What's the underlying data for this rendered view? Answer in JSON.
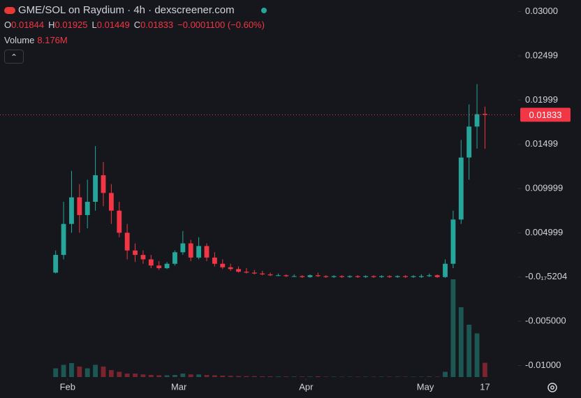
{
  "chart_data": {
    "type": "candlestick",
    "title": "GME/SOL on Raydium · 4h · dexscreener.com",
    "legend": {
      "o_label": "O",
      "open": "0.01844",
      "h_label": "H",
      "high": "0.01925",
      "l_label": "L",
      "low": "0.01449",
      "c_label": "C",
      "close": "0.01833",
      "change": "−0.0001100 (−0.60%)",
      "volume_label": "Volume",
      "volume": "8.176M"
    },
    "up_color": "#26a69a",
    "down_color": "#f23645",
    "categories": [
      null,
      null,
      null,
      null,
      null,
      null,
      null,
      null,
      null,
      null,
      null,
      null,
      null,
      null,
      null,
      null,
      null,
      null,
      null,
      null,
      null,
      null,
      null,
      null,
      null,
      null,
      null,
      null,
      null,
      null,
      null,
      null,
      null,
      null,
      null,
      null,
      null,
      null,
      null,
      null,
      null,
      null,
      null,
      null,
      null,
      null,
      null,
      null,
      null,
      null,
      null,
      null,
      null,
      null,
      null
    ],
    "open": [
      0.0005,
      0.0025,
      0.006,
      0.009,
      0.007,
      0.0085,
      0.0115,
      0.0095,
      0.0075,
      0.005,
      0.003,
      0.0025,
      0.002,
      0.0013,
      0.001,
      0.0015,
      0.0028,
      0.0038,
      0.0022,
      0.0035,
      0.0022,
      0.0015,
      0.0011,
      0.0009,
      0.0006,
      0.0005,
      0.0004,
      0.0003,
      0.0002,
      0.0002,
      0.0001,
      0.0001,
      0,
      0.0002,
      0.0001,
      0,
      0.0001,
      0,
      0.0001,
      0,
      0.0001,
      0,
      0.0001,
      0,
      0.0001,
      0,
      0,
      0.0001,
      0.0002,
      0,
      0.0015,
      0.0065,
      0.0135,
      0.017,
      0.01844
    ],
    "high": [
      0.003,
      0.0085,
      0.012,
      0.0105,
      0.011,
      0.0148,
      0.013,
      0.0105,
      0.0085,
      0.006,
      0.0038,
      0.003,
      0.0025,
      0.0018,
      0.0017,
      0.003,
      0.0052,
      0.0042,
      0.0045,
      0.0038,
      0.0028,
      0.002,
      0.0015,
      0.0012,
      0.001,
      0.0008,
      0.0007,
      0.0005,
      0.0004,
      0.0003,
      0.0003,
      0.0002,
      0.0003,
      0.0005,
      0.0002,
      0.0002,
      0.0002,
      0.0002,
      0.0002,
      0.0002,
      0.0002,
      0.0002,
      0.0002,
      0.0002,
      0.0002,
      0.0002,
      0.0003,
      0.0004,
      0.0003,
      0.002,
      0.0075,
      0.0155,
      0.0195,
      0.0218,
      0.01925
    ],
    "low": [
      0.0004,
      0.002,
      0.005,
      0.005,
      0.0055,
      0.0075,
      0.008,
      0.006,
      0.0045,
      0.002,
      0.0017,
      0.0015,
      0.001,
      0.0008,
      0.0009,
      0.0013,
      0.0025,
      0.0018,
      0.002,
      0.0018,
      0.0012,
      0.0009,
      0.0007,
      0.0005,
      0.0004,
      0.0003,
      0.0002,
      0.0001,
      0.0001,
      0,
      0,
      -0.0001,
      -0.0001,
      0,
      -0.0001,
      -0.0001,
      -0.0001,
      -0.0001,
      -0.0001,
      -0.0001,
      -0.0001,
      -0.0001,
      -0.0001,
      -0.0001,
      -0.0001,
      -0.0001,
      -0.0001,
      0,
      -0.0001,
      -0.0001,
      0.001,
      0.006,
      0.011,
      0.0145,
      0.01449
    ],
    "close": [
      0.0025,
      0.006,
      0.009,
      0.007,
      0.0085,
      0.0115,
      0.0095,
      0.0075,
      0.005,
      0.003,
      0.0025,
      0.002,
      0.0013,
      0.001,
      0.0015,
      0.0028,
      0.0038,
      0.0022,
      0.0035,
      0.0022,
      0.0015,
      0.0011,
      0.0009,
      0.0006,
      0.0005,
      0.0004,
      0.0003,
      0.0002,
      0.0002,
      0.0001,
      0.0001,
      0,
      0.0002,
      0.0001,
      0,
      0.0001,
      0,
      0.0001,
      0,
      0.0001,
      0,
      0.0001,
      0,
      0.0001,
      0,
      0.0001,
      0.0001,
      0.0002,
      0,
      0.0015,
      0.0065,
      0.0135,
      0.017,
      0.0184,
      0.01833
    ],
    "volume": [
      5,
      7,
      8,
      6,
      5,
      7,
      6,
      4,
      3,
      2,
      2,
      1.5,
      1.2,
      1,
      1,
      1.2,
      2,
      1.5,
      1.5,
      1.2,
      1,
      0.8,
      0.7,
      0.6,
      0.5,
      0.5,
      0.4,
      0.4,
      0.3,
      0.3,
      0.3,
      0.3,
      0.3,
      0.4,
      0.2,
      0.2,
      0.2,
      0.2,
      0.2,
      0.2,
      0.2,
      0.2,
      0.2,
      0.2,
      0.2,
      0.2,
      0.2,
      0.3,
      0.2,
      3,
      56,
      40,
      30,
      25,
      8.176
    ],
    "volume_lim": [
      0,
      60
    ],
    "xlim": [
      -7,
      58
    ],
    "xticks": [
      {
        "value": 1.5,
        "label": "Feb"
      },
      {
        "value": 15.5,
        "label": "Mar"
      },
      {
        "value": 31.5,
        "label": "Apr"
      },
      {
        "value": 46.5,
        "label": "May"
      },
      {
        "value": 54,
        "label": "17"
      }
    ],
    "ylim": [
      -0.0113,
      0.0313
    ],
    "yticks": [
      {
        "value": 0.03,
        "label": "0.03000"
      },
      0.02499,
      0.01999,
      0.01499,
      0.009999,
      0.004999,
      {
        "value": 0,
        "label": "-0.0₁₇5204"
      },
      {
        "value": -0.005,
        "label": "-0.005000"
      },
      {
        "value": -0.01,
        "label": "-0.01000"
      }
    ],
    "last_price": 0.01833
  }
}
